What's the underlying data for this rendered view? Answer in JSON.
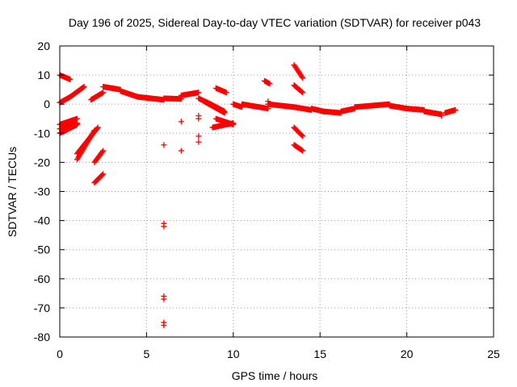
{
  "chart_data": {
    "type": "scatter",
    "title": "Day 196 of 2025, Sidereal Day-to-day VTEC variation (SDTVAR) for receiver p043",
    "xlabel": "GPS time / hours",
    "ylabel": "SDTVAR / TECUs",
    "xlim": [
      0,
      25
    ],
    "ylim": [
      -80,
      20
    ],
    "xticks": [
      0,
      5,
      10,
      15,
      20,
      25
    ],
    "yticks": [
      20,
      10,
      0,
      -10,
      -20,
      -30,
      -40,
      -50,
      -60,
      -70,
      -80
    ],
    "grid": true,
    "marker": "+",
    "series_color": "#ff0000",
    "segments": [
      [
        0.0,
        10.0,
        0.6,
        8.5
      ],
      [
        0.0,
        0.5,
        0.6,
        2.5
      ],
      [
        0.6,
        2.5,
        1.4,
        6.0
      ],
      [
        0.0,
        -7.0,
        1.0,
        -5.0
      ],
      [
        0.0,
        -8.5,
        1.0,
        -6.5
      ],
      [
        0.0,
        -10.0,
        1.0,
        -7.0
      ],
      [
        1.0,
        -19.0,
        2.0,
        -9.0
      ],
      [
        1.0,
        -17.0,
        2.2,
        -8.0
      ],
      [
        1.8,
        1.5,
        2.5,
        4.0
      ],
      [
        2.5,
        6.0,
        3.5,
        5.0
      ],
      [
        2.0,
        -20.0,
        2.5,
        -16.0
      ],
      [
        2.0,
        -27.0,
        2.5,
        -24.0
      ],
      [
        3.5,
        4.5,
        4.5,
        2.5
      ],
      [
        4.5,
        2.5,
        6.0,
        1.5
      ],
      [
        6.0,
        2.0,
        7.0,
        1.8
      ],
      [
        7.0,
        3.0,
        8.0,
        4.0
      ],
      [
        8.0,
        2.0,
        8.7,
        0.0
      ],
      [
        8.7,
        0.0,
        9.5,
        -2.5
      ],
      [
        8.3,
        1.0,
        9.5,
        -3.0
      ],
      [
        9.0,
        -5.0,
        10.0,
        -7.0
      ],
      [
        8.8,
        -8.0,
        10.0,
        -6.5
      ],
      [
        9.0,
        5.5,
        9.6,
        4.0
      ],
      [
        10.0,
        0.0,
        10.5,
        -1.0
      ],
      [
        10.5,
        0.0,
        12.0,
        -1.5
      ],
      [
        11.8,
        8.0,
        12.1,
        7.0
      ],
      [
        12.0,
        0.0,
        13.5,
        -1.0
      ],
      [
        13.5,
        -1.0,
        14.5,
        -2.0
      ],
      [
        13.5,
        13.5,
        14.0,
        9.0
      ],
      [
        13.5,
        6.5,
        14.0,
        4.0
      ],
      [
        13.5,
        -8.0,
        14.0,
        -11.0
      ],
      [
        13.5,
        -14.0,
        14.0,
        -16.0
      ],
      [
        14.5,
        -1.5,
        15.2,
        -2.5
      ],
      [
        15.2,
        -2.5,
        16.2,
        -3.0
      ],
      [
        16.2,
        -2.5,
        17.0,
        -1.5
      ],
      [
        17.0,
        -1.0,
        18.0,
        -0.5
      ],
      [
        18.0,
        -0.5,
        19.0,
        0.0
      ],
      [
        19.0,
        -0.5,
        20.0,
        -1.5
      ],
      [
        20.0,
        -1.5,
        21.0,
        -2.0
      ],
      [
        21.0,
        -2.5,
        22.0,
        -3.5
      ],
      [
        22.2,
        -3.0,
        22.8,
        -2.0
      ]
    ],
    "points": [
      [
        6.0,
        -14.0
      ],
      [
        6.0,
        -41.0
      ],
      [
        6.0,
        -42.0
      ],
      [
        6.0,
        -66.0
      ],
      [
        6.0,
        -67.0
      ],
      [
        6.0,
        -75.0
      ],
      [
        6.0,
        -76.0
      ],
      [
        7.0,
        -6.0
      ],
      [
        7.0,
        -16.0
      ],
      [
        8.0,
        -4.0
      ],
      [
        8.0,
        -5.0
      ],
      [
        8.0,
        -11.0
      ],
      [
        8.0,
        -13.0
      ],
      [
        12.0,
        1.0
      ],
      [
        22.0,
        -4.0
      ]
    ]
  }
}
